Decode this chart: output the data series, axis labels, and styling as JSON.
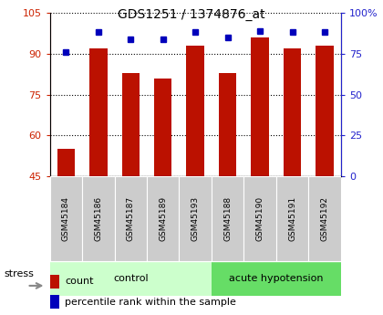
{
  "title": "GDS1251 / 1374876_at",
  "samples": [
    "GSM45184",
    "GSM45186",
    "GSM45187",
    "GSM45189",
    "GSM45193",
    "GSM45188",
    "GSM45190",
    "GSM45191",
    "GSM45192"
  ],
  "counts": [
    55,
    92,
    83,
    81,
    93,
    83,
    96,
    92,
    93
  ],
  "percentiles": [
    76,
    88,
    84,
    84,
    88,
    85,
    89,
    88,
    88
  ],
  "groups": [
    "control",
    "control",
    "control",
    "control",
    "control",
    "acute hypotension",
    "acute hypotension",
    "acute hypotension",
    "acute hypotension"
  ],
  "ylim_left": [
    45,
    105
  ],
  "ylim_right": [
    0,
    100
  ],
  "yticks_left": [
    45,
    60,
    75,
    90,
    105
  ],
  "yticks_right": [
    0,
    25,
    50,
    75,
    100
  ],
  "ytick_right_labels": [
    "0",
    "25",
    "50",
    "75",
    "100%"
  ],
  "bar_color": "#bb1100",
  "marker_color": "#0000bb",
  "bg_color": "#ffffff",
  "stress_label": "stress",
  "legend_count": "count",
  "legend_percentile": "percentile rank within the sample",
  "title_color": "#000000",
  "left_axis_color": "#cc2200",
  "right_axis_color": "#2222cc",
  "sample_box_color": "#cccccc",
  "control_color": "#ccffcc",
  "acute_color": "#66dd66",
  "n_control": 5,
  "n_acute": 4
}
